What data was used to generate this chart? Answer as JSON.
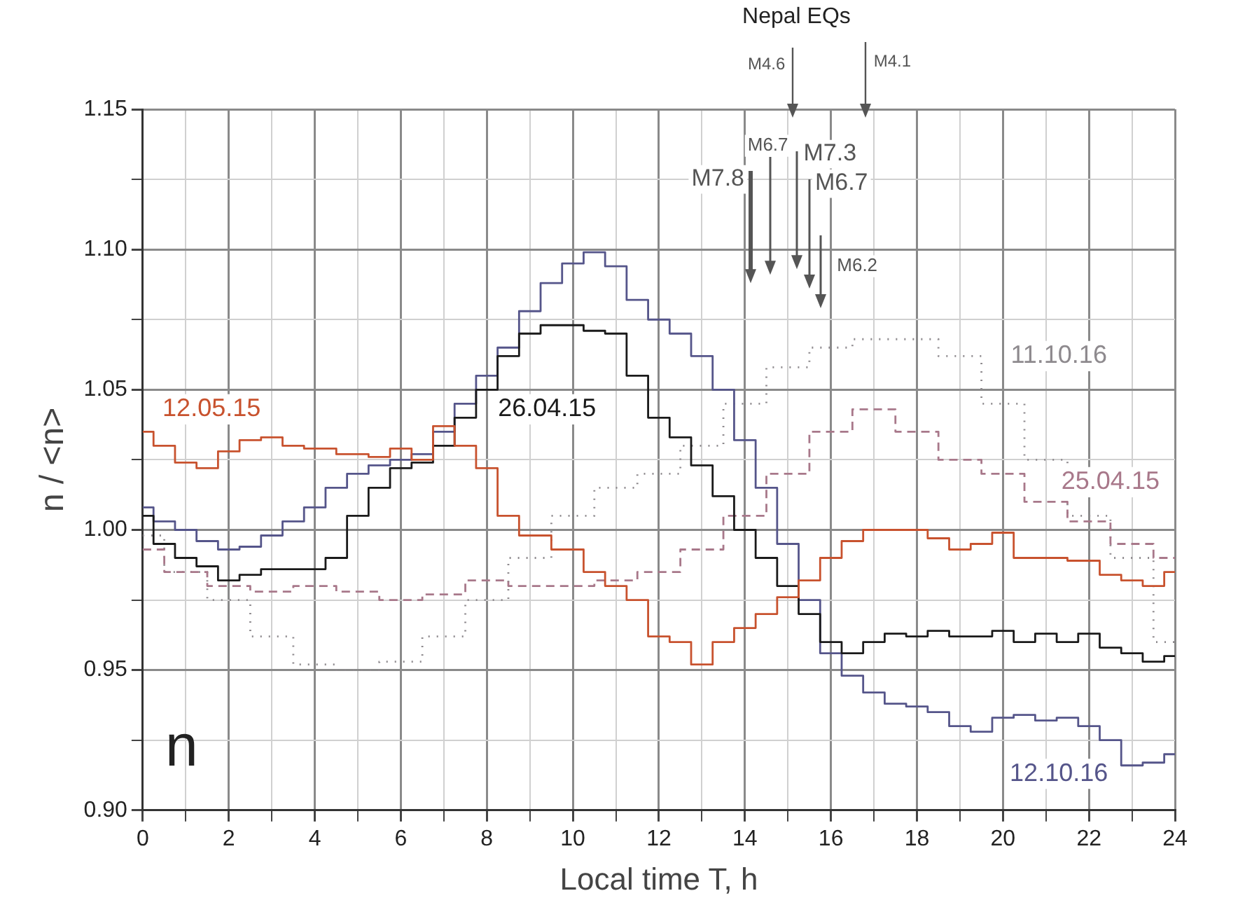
{
  "chart_data": {
    "type": "step",
    "xlabel": "Local time T, h",
    "ylabel": "n / <n>",
    "xlim": [
      0,
      24
    ],
    "ylim": [
      0.9,
      1.15
    ],
    "xticks": [
      0,
      {
        "value": 1,
        "label": null
      },
      2,
      {
        "value": 3,
        "label": null
      },
      4,
      {
        "value": 5,
        "label": null
      },
      6,
      {
        "value": 7,
        "label": null
      },
      8,
      {
        "value": 9,
        "label": null
      },
      10,
      {
        "value": 11,
        "label": null
      },
      12,
      {
        "value": 13,
        "label": null
      },
      14,
      {
        "value": 15,
        "label": null
      },
      16,
      {
        "value": 17,
        "label": null
      },
      18,
      {
        "value": 19,
        "label": null
      },
      20,
      {
        "value": 21,
        "label": null
      },
      22,
      {
        "value": 23,
        "label": null
      },
      24
    ],
    "yticks": [
      {
        "value": 0.9,
        "label": "0.90"
      },
      {
        "value": 0.925,
        "label": null
      },
      {
        "value": 0.95,
        "label": "0.95"
      },
      {
        "value": 0.975,
        "label": null
      },
      {
        "value": 1.0,
        "label": "1.00"
      },
      {
        "value": 1.025,
        "label": null
      },
      {
        "value": 1.05,
        "label": "1.05"
      },
      {
        "value": 1.075,
        "label": null
      },
      {
        "value": 1.1,
        "label": "1.10"
      },
      {
        "value": 1.125,
        "label": null
      },
      {
        "value": 1.15,
        "label": "1.15"
      }
    ],
    "grid": true,
    "legend": false,
    "marker": "none",
    "series": [
      {
        "name": "12.05.15",
        "color": "#c8522e",
        "line_style": "solid",
        "x": [
          0,
          0.5,
          1,
          1.5,
          2,
          2.5,
          3,
          3.5,
          4,
          5,
          5.5,
          6,
          6.5,
          7,
          7.5,
          8,
          8.5,
          9,
          10,
          10.5,
          11,
          11.5,
          12,
          12.5,
          13,
          13.5,
          14,
          14.5,
          15,
          15.5,
          16,
          16.5,
          17,
          17.5,
          18,
          18.5,
          19,
          19.5,
          20,
          20.5,
          21,
          22,
          22.5,
          23,
          23.5,
          24
        ],
        "values": [
          1.035,
          1.03,
          1.024,
          1.022,
          1.028,
          1.032,
          1.033,
          1.03,
          1.029,
          1.027,
          1.026,
          1.029,
          1.025,
          1.037,
          1.03,
          1.022,
          1.005,
          0.998,
          0.993,
          0.985,
          0.98,
          0.975,
          0.962,
          0.96,
          0.952,
          0.96,
          0.965,
          0.97,
          0.976,
          0.982,
          0.99,
          0.996,
          1.0,
          1.0,
          1.0,
          0.997,
          0.993,
          0.995,
          0.999,
          0.99,
          0.99,
          0.989,
          0.984,
          0.982,
          0.98,
          0.985
        ]
      },
      {
        "name": "26.04.15",
        "color": "#1a1a1a",
        "line_style": "solid",
        "x": [
          0,
          0.5,
          1,
          1.5,
          2,
          2.5,
          3,
          4,
          4.5,
          5,
          5.5,
          6,
          6.5,
          7,
          7.5,
          8,
          8.5,
          9,
          9.5,
          10,
          10.5,
          11,
          11.5,
          12,
          12.5,
          13,
          13.5,
          14,
          14.5,
          15,
          15.5,
          16,
          16.5,
          17,
          17.5,
          18,
          18.5,
          19,
          19.5,
          20,
          20.5,
          21,
          21.5,
          22,
          22.5,
          23,
          23.5,
          24
        ],
        "values": [
          1.005,
          0.995,
          0.99,
          0.987,
          0.982,
          0.984,
          0.986,
          0.986,
          0.99,
          1.005,
          1.015,
          1.022,
          1.024,
          1.03,
          1.04,
          1.05,
          1.062,
          1.07,
          1.073,
          1.073,
          1.071,
          1.07,
          1.055,
          1.04,
          1.033,
          1.023,
          1.012,
          1.0,
          0.99,
          0.98,
          0.97,
          0.96,
          0.956,
          0.96,
          0.963,
          0.962,
          0.964,
          0.962,
          0.962,
          0.964,
          0.96,
          0.963,
          0.96,
          0.963,
          0.958,
          0.956,
          0.953,
          0.955
        ]
      },
      {
        "name": "12.10.16",
        "color": "#55558a",
        "line_style": "solid",
        "x": [
          0,
          0.5,
          1,
          1.5,
          2,
          2.5,
          3,
          3.5,
          4,
          4.5,
          5,
          5.5,
          6,
          6.5,
          7,
          7.5,
          8,
          8.5,
          9,
          9.5,
          10,
          10.5,
          11,
          11.5,
          12,
          12.5,
          13,
          13.5,
          14,
          14.5,
          15,
          15.5,
          16,
          16.5,
          17,
          17.5,
          18,
          18.5,
          19,
          19.5,
          20,
          20.5,
          21,
          21.5,
          22,
          22.5,
          23,
          23.5,
          24
        ],
        "values": [
          1.008,
          1.003,
          1.0,
          0.996,
          0.993,
          0.994,
          0.998,
          1.003,
          1.008,
          1.015,
          1.02,
          1.023,
          1.025,
          1.027,
          1.035,
          1.045,
          1.055,
          1.065,
          1.078,
          1.088,
          1.095,
          1.099,
          1.094,
          1.082,
          1.075,
          1.07,
          1.062,
          1.05,
          1.032,
          1.015,
          0.995,
          0.975,
          0.956,
          0.948,
          0.942,
          0.938,
          0.937,
          0.935,
          0.93,
          0.928,
          0.933,
          0.934,
          0.932,
          0.933,
          0.93,
          0.925,
          0.916,
          0.917,
          0.92
        ]
      },
      {
        "name": "25.04.15",
        "color": "#a8788a",
        "line_style": "dashed",
        "x": [
          0,
          1,
          2,
          3,
          4,
          5,
          6,
          7,
          8,
          9,
          10,
          11,
          12,
          13,
          14,
          15,
          16,
          17,
          18,
          19,
          20,
          21,
          22,
          23,
          24
        ],
        "values": [
          0.993,
          0.985,
          0.98,
          0.978,
          0.98,
          0.978,
          0.975,
          0.977,
          0.982,
          0.98,
          0.98,
          0.982,
          0.985,
          0.993,
          1.005,
          1.02,
          1.035,
          1.043,
          1.035,
          1.025,
          1.02,
          1.01,
          1.003,
          0.995,
          0.99
        ]
      },
      {
        "name": "11.10.16",
        "color": "#8e8a8e",
        "line_style": "dotted",
        "x": [
          0,
          1,
          2,
          3,
          4,
          5,
          6,
          7,
          8,
          9,
          10,
          11,
          12,
          13,
          14,
          15,
          16,
          17,
          18,
          19,
          20,
          21,
          22,
          23,
          24
        ],
        "values": [
          0.998,
          0.985,
          0.975,
          0.962,
          0.952,
          0.95,
          0.953,
          0.962,
          0.975,
          0.99,
          1.005,
          1.015,
          1.02,
          1.03,
          1.045,
          1.058,
          1.065,
          1.068,
          1.068,
          1.062,
          1.045,
          1.025,
          1.005,
          0.99,
          0.96
        ]
      }
    ],
    "annotations": [
      "Nepal EQs",
      "n",
      "M7.8",
      "M6.7",
      "M7.3",
      "M6.7",
      "M6.2",
      "M4.6",
      "M4.1"
    ]
  }
}
